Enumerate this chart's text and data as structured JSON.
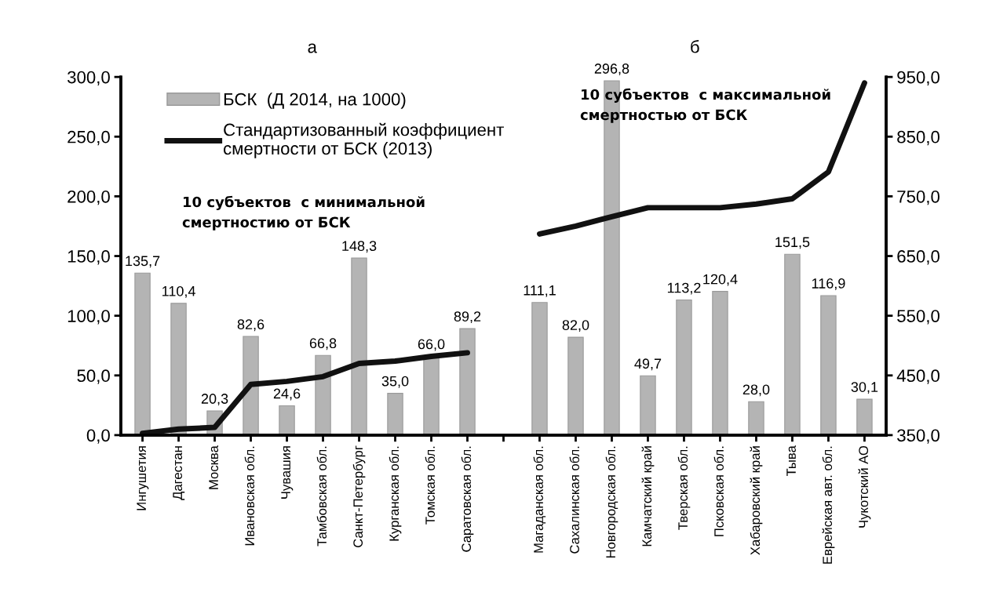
{
  "chart_data": {
    "type": "bar",
    "categories": [
      "Ингушетия",
      "Дагестан",
      "Москва",
      "Ивановская обл.",
      "Чувашия",
      "Тамбовская обл.",
      "Санкт-Петербург",
      "Курганская обл.",
      "Томская обл.",
      "Саратовская обл.",
      null,
      "Магаданская обл.",
      "Сахалинская обл.",
      "Новгородская обл.",
      "Камчатский край",
      "Тверская обл.",
      "Псковская обл.",
      "Хабаровский край",
      "Тыва",
      "Еврейская авт. обл.",
      "Чукотский АО"
    ],
    "series": [
      {
        "name": "БСК  (Д 2014, на 1000)",
        "color": "#b4b4b4",
        "values": [
          135.7,
          110.4,
          20.3,
          82.6,
          24.6,
          66.8,
          148.3,
          35.0,
          66.0,
          89.2,
          null,
          111.1,
          82.0,
          296.8,
          49.7,
          113.2,
          120.4,
          28.0,
          151.5,
          116.9,
          30.1
        ],
        "value_labels": [
          "135,7",
          "110,4",
          "20,3",
          "82,6",
          "24,6",
          "66,8",
          "148,3",
          "35,0",
          "66,0",
          "89,2",
          null,
          "111,1",
          "82,0",
          "296,8",
          "49,7",
          "113,2",
          "120,4",
          "28,0",
          "151,5",
          "116,9",
          "30,1"
        ]
      },
      {
        "name": "Стандартизованный коэффициент\nсмертности от БСК (2013)",
        "type": "line",
        "axis": "y2",
        "color": "#111111",
        "values": [
          353,
          360,
          363,
          435,
          440,
          448,
          470,
          474,
          482,
          488,
          null,
          687,
          700,
          716,
          731,
          731,
          731,
          737,
          746,
          791,
          940
        ]
      }
    ],
    "ylim": [
      0,
      300
    ],
    "yticks": [
      {
        "value": 0,
        "label": "0,0"
      },
      {
        "value": 50,
        "label": "50,0"
      },
      {
        "value": 100,
        "label": "100,0"
      },
      {
        "value": 150,
        "label": "150,0"
      },
      {
        "value": 200,
        "label": "200,0"
      },
      {
        "value": 250,
        "label": "250,0"
      },
      {
        "value": 300,
        "label": "300,0"
      }
    ],
    "y2lim": [
      350,
      950
    ],
    "y2ticks": [
      {
        "value": 350,
        "label": "350,0"
      },
      {
        "value": 450,
        "label": "450,0"
      },
      {
        "value": 550,
        "label": "550,0"
      },
      {
        "value": 650,
        "label": "650,0"
      },
      {
        "value": 750,
        "label": "750,0"
      },
      {
        "value": 850,
        "label": "850,0"
      },
      {
        "value": 950,
        "label": "950,0"
      }
    ],
    "annotations": [
      "а",
      "б",
      "10 субъектов  с минимальной\nсмертностию от БСК",
      "10 субъектов  с максимальной\nсмертностью от БСК"
    ],
    "legend": "top left",
    "grid": false,
    "marker": "none",
    "line_style": "solid"
  }
}
